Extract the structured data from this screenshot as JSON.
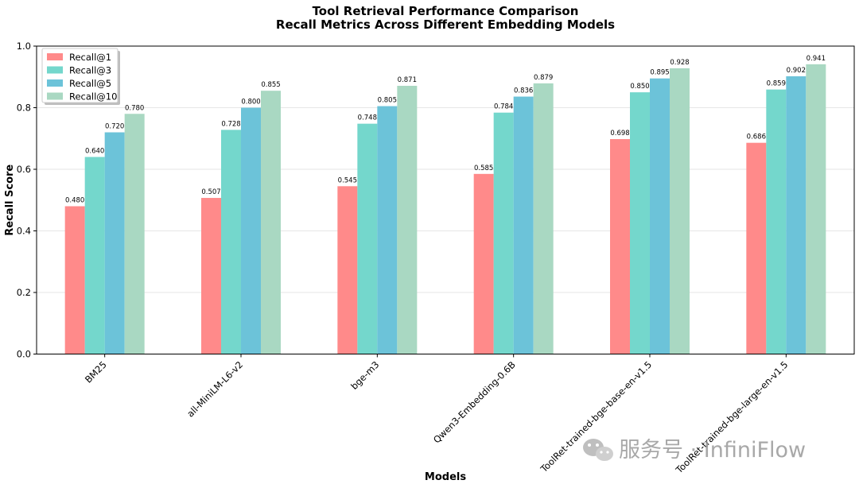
{
  "chart_data": {
    "type": "bar",
    "title": "Tool Retrieval Performance Comparison",
    "subtitle": "Recall Metrics Across Different Embedding Models",
    "xlabel": "Models",
    "ylabel": "Recall Score",
    "ylim": [
      0,
      1.0
    ],
    "yticks": [
      "0.0",
      "0.2",
      "0.4",
      "0.6",
      "0.8",
      "1.0"
    ],
    "grid": "horizontal",
    "legend_position": "top-left",
    "categories": [
      "BM25",
      "all-MiniLM-L6-v2",
      "bge-m3",
      "Qwen3-Embedding-0.6B",
      "ToolRet-trained-bge-base-en-v1.5",
      "ToolRet-trained-bge-large-en-v1.5"
    ],
    "series": [
      {
        "name": "Recall@1",
        "color": "#ff8a8a",
        "values": [
          0.48,
          0.507,
          0.545,
          0.585,
          0.698,
          0.686
        ],
        "labels": [
          "0.480",
          "0.507",
          "0.545",
          "0.585",
          "0.698",
          "0.686"
        ]
      },
      {
        "name": "Recall@3",
        "color": "#74d7cc",
        "values": [
          0.64,
          0.728,
          0.748,
          0.784,
          0.85,
          0.859
        ],
        "labels": [
          "0.640",
          "0.728",
          "0.748",
          "0.784",
          "0.850",
          "0.859"
        ]
      },
      {
        "name": "Recall@5",
        "color": "#6cc3d9",
        "values": [
          0.72,
          0.8,
          0.805,
          0.836,
          0.895,
          0.902
        ],
        "labels": [
          "0.720",
          "0.800",
          "0.805",
          "0.836",
          "0.895",
          "0.902"
        ]
      },
      {
        "name": "Recall@10",
        "color": "#a9d8c2",
        "values": [
          0.78,
          0.855,
          0.871,
          0.879,
          0.928,
          0.941
        ],
        "labels": [
          "0.780",
          "0.855",
          "0.871",
          "0.879",
          "0.928",
          "0.941"
        ]
      }
    ]
  },
  "watermark": {
    "text": "服务号 · InfiniFlow",
    "icon": "wechat-icon"
  }
}
